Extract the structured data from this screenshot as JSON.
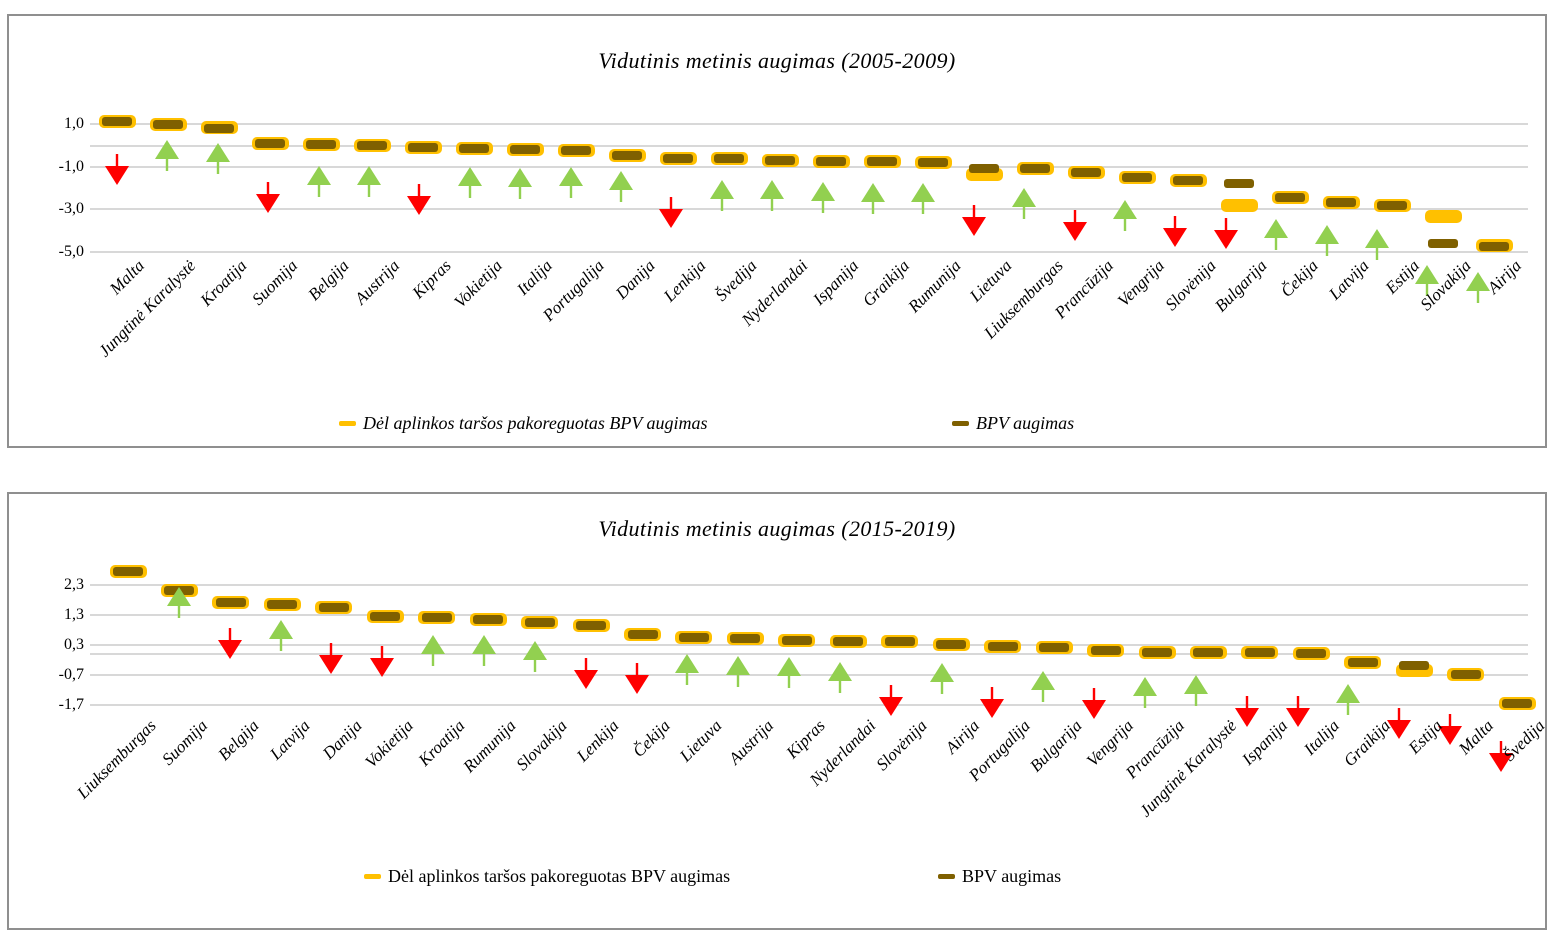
{
  "colors": {
    "adjusted": "#FFC000",
    "bpv": "#7F6000",
    "arrow_up": "#92D050",
    "arrow_down": "#FF0000",
    "gridline": "#D8D8D8",
    "panel_border": "#8F8F8F",
    "text": "#000000"
  },
  "chart_data": [
    {
      "type": "scatter",
      "title": "Vidutinis metinis augimas (2005-2009)",
      "legend": [
        {
          "label": "Dėl aplinkos taršos pakoreguotas BPV augimas",
          "color": "#FFC000",
          "marker": "dash"
        },
        {
          "label": "BPV augimas",
          "color": "#7F6000",
          "marker": "dash"
        }
      ],
      "legend_italic": true,
      "y_ticks": [
        {
          "label": "1,0",
          "value": 1.0
        },
        {
          "label": "-1,0",
          "value": -1.0
        },
        {
          "label": "-3,0",
          "value": -3.0
        },
        {
          "label": "-5,0",
          "value": -5.0
        }
      ],
      "zero_line": 0,
      "ylim": [
        -6.5,
        1.6
      ],
      "grid": true,
      "legend_position": "bottom",
      "categories": [
        "Malta",
        "Jungtinė Karalystė",
        "Kroatija",
        "Suomija",
        "Belgija",
        "Austrija",
        "Kipras",
        "Vokietija",
        "Italija",
        "Portugalija",
        "Danija",
        "Lenkija",
        "Švedija",
        "Nyderlandai",
        "Ispanija",
        "Graikija",
        "Rumunija",
        "Lietuva",
        "Liuksemburgas",
        "Prancūzija",
        "Vengrija",
        "Slovėnija",
        "Bulgarija",
        "Čekija",
        "Latvija",
        "Estija",
        "Slovakija",
        "Airija"
      ],
      "series": [
        {
          "name": "Dėl aplinkos taršos pakoreguotas BPV augimas",
          "marker": "dash",
          "color": "#FFC000",
          "values": [
            1.15,
            1.0,
            0.85,
            0.1,
            0.05,
            0.0,
            -0.1,
            -0.15,
            -0.2,
            -0.25,
            -0.45,
            -0.6,
            -0.6,
            -0.7,
            -0.75,
            -0.75,
            -0.8,
            -1.35,
            -1.1,
            -1.25,
            -1.5,
            -1.65,
            -2.8,
            -2.45,
            -2.7,
            -2.8,
            -3.35,
            -4.7
          ]
        },
        {
          "name": "BPV augimas",
          "marker": "dash",
          "color": "#7F6000",
          "values": [
            1.15,
            1.0,
            0.8,
            0.1,
            0.05,
            0.0,
            -0.1,
            -0.15,
            -0.2,
            -0.25,
            -0.45,
            -0.6,
            -0.6,
            -0.7,
            -0.75,
            -0.75,
            -0.8,
            -1.1,
            -1.1,
            -1.25,
            -1.5,
            -1.65,
            -1.8,
            -2.45,
            -2.7,
            -2.8,
            -4.6,
            -4.75
          ]
        }
      ],
      "arrows": {
        "up_color": "#92D050",
        "down_color": "#FF0000",
        "values": [
          -1.4,
          -0.2,
          -0.35,
          -2.7,
          -1.45,
          -1.45,
          -2.8,
          -1.5,
          -1.55,
          -1.5,
          -1.65,
          -3.4,
          -2.1,
          -2.1,
          -2.2,
          -2.25,
          -2.25,
          -3.8,
          -2.45,
          -4.0,
          -3.05,
          -4.3,
          -4.4,
          -3.95,
          -4.2,
          -4.4,
          -6.1,
          -6.4
        ],
        "directions": [
          "down",
          "up",
          "up",
          "down",
          "up",
          "up",
          "down",
          "up",
          "up",
          "up",
          "up",
          "down",
          "up",
          "up",
          "up",
          "up",
          "up",
          "down",
          "up",
          "down",
          "up",
          "down",
          "down",
          "up",
          "up",
          "up",
          "up",
          "up"
        ]
      }
    },
    {
      "type": "scatter",
      "title": "Vidutinis metinis augimas (2015-2019)",
      "legend": [
        {
          "label": "Dėl aplinkos taršos pakoreguotas BPV augimas",
          "color": "#FFC000",
          "marker": "dash"
        },
        {
          "label": "BPV augimas",
          "color": "#7F6000",
          "marker": "dash"
        }
      ],
      "legend_italic": false,
      "y_ticks": [
        {
          "label": "2,3",
          "value": 2.3
        },
        {
          "label": "1,3",
          "value": 1.3
        },
        {
          "label": "0,3",
          "value": 0.3
        },
        {
          "label": "-0,7",
          "value": -0.7
        },
        {
          "label": "-1,7",
          "value": -1.7
        }
      ],
      "zero_line": 0,
      "ylim": [
        -3.9,
        3.0
      ],
      "grid": true,
      "legend_position": "bottom",
      "categories": [
        "Liuksemburgas",
        "Suomija",
        "Belgija",
        "Latvija",
        "Danija",
        "Vokietija",
        "Kroatija",
        "Rumunija",
        "Slovakija",
        "Lenkija",
        "Čekija",
        "Lietuva",
        "Austrija",
        "Kipras",
        "Nyderlandai",
        "Slovėnija",
        "Airija",
        "Portugalija",
        "Bulgarija",
        "Vengrija",
        "Prancūzija",
        "Jungtinė Karalystė",
        "Ispanija",
        "Italija",
        "Graikija",
        "Estija",
        "Malta",
        "Švedija"
      ],
      "series": [
        {
          "name": "Dėl aplinkos taršos pakoreguotas BPV augimas",
          "marker": "dash",
          "color": "#FFC000",
          "values": [
            2.75,
            2.1,
            1.7,
            1.65,
            1.55,
            1.25,
            1.2,
            1.15,
            1.05,
            0.95,
            0.65,
            0.55,
            0.5,
            0.45,
            0.4,
            0.4,
            0.3,
            0.25,
            0.2,
            0.1,
            0.05,
            0.05,
            0.05,
            0.0,
            -0.3,
            -0.55,
            -0.7,
            -1.65
          ]
        },
        {
          "name": "BPV augimas",
          "marker": "dash",
          "color": "#7F6000",
          "values": [
            2.75,
            2.1,
            1.7,
            1.65,
            1.55,
            1.25,
            1.2,
            1.15,
            1.05,
            0.95,
            0.65,
            0.55,
            0.5,
            0.45,
            0.4,
            0.4,
            0.3,
            0.25,
            0.2,
            0.1,
            0.05,
            0.05,
            0.05,
            0.0,
            -0.3,
            -0.4,
            -0.7,
            -1.65
          ]
        }
      ],
      "arrows": {
        "up_color": "#92D050",
        "down_color": "#FF0000",
        "values": [
          null,
          1.9,
          0.15,
          0.8,
          -0.35,
          -0.45,
          0.3,
          0.3,
          0.1,
          -0.85,
          -1.0,
          -0.35,
          -0.4,
          -0.45,
          -0.6,
          -1.75,
          -0.65,
          -1.8,
          -0.9,
          -1.85,
          -1.1,
          -1.05,
          -2.1,
          -2.1,
          -1.35,
          -2.5,
          -2.7,
          -3.6
        ],
        "directions": [
          null,
          "up",
          "down",
          "up",
          "down",
          "down",
          "up",
          "up",
          "up",
          "down",
          "down",
          "up",
          "up",
          "up",
          "up",
          "down",
          "up",
          "down",
          "up",
          "down",
          "up",
          "up",
          "down",
          "down",
          "up",
          "down",
          "down",
          "down"
        ]
      }
    }
  ]
}
